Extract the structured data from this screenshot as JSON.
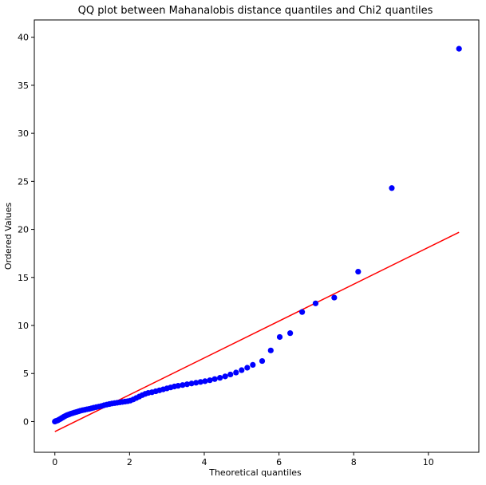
{
  "chart_data": {
    "type": "scatter",
    "title": "QQ plot between Mahanalobis distance quantiles and Chi2 quantiles",
    "xlabel": "Theoretical quantiles",
    "ylabel": "Ordered Values",
    "xlim": [
      -0.55,
      11.35
    ],
    "ylim": [
      -3.2,
      41.8
    ],
    "xticks": [
      0,
      2,
      4,
      6,
      8,
      10
    ],
    "yticks": [
      0,
      5,
      10,
      15,
      20,
      25,
      30,
      35,
      40
    ],
    "grid": false,
    "legend": "none",
    "colors": {
      "points": "#0000ff",
      "fit_line": "#ff0000",
      "axes": "#000000",
      "background": "#ffffff"
    },
    "series": [
      {
        "type": "scatter",
        "x": [
          0.0,
          0.02,
          0.05,
          0.08,
          0.1,
          0.13,
          0.16,
          0.18,
          0.21,
          0.24,
          0.27,
          0.31,
          0.35,
          0.39,
          0.43,
          0.48,
          0.53,
          0.58,
          0.63,
          0.68,
          0.74,
          0.8,
          0.86,
          0.92,
          0.98,
          1.04,
          1.11,
          1.18,
          1.25,
          1.32,
          1.39,
          1.46,
          1.53,
          1.6,
          1.67,
          1.74,
          1.81,
          1.88,
          1.95,
          2.02,
          2.1,
          2.18,
          2.26,
          2.34,
          2.42,
          2.5,
          2.6,
          2.7,
          2.8,
          2.9,
          3.0,
          3.1,
          3.2,
          3.3,
          3.42,
          3.54,
          3.66,
          3.78,
          3.9,
          4.02,
          4.15,
          4.28,
          4.42,
          4.56,
          4.7,
          4.85,
          5.0,
          5.15,
          5.3,
          5.55,
          5.78,
          6.02,
          6.3,
          6.62,
          6.98,
          7.48,
          8.12,
          9.02,
          10.82
        ],
        "y": [
          0.0,
          0.05,
          0.08,
          0.12,
          0.18,
          0.24,
          0.3,
          0.36,
          0.42,
          0.5,
          0.56,
          0.64,
          0.7,
          0.76,
          0.82,
          0.88,
          0.94,
          1.0,
          1.06,
          1.12,
          1.18,
          1.22,
          1.28,
          1.32,
          1.38,
          1.44,
          1.5,
          1.56,
          1.62,
          1.7,
          1.76,
          1.82,
          1.88,
          1.92,
          1.96,
          2.0,
          2.04,
          2.08,
          2.12,
          2.18,
          2.3,
          2.45,
          2.6,
          2.75,
          2.88,
          2.98,
          3.05,
          3.15,
          3.25,
          3.35,
          3.45,
          3.55,
          3.65,
          3.72,
          3.8,
          3.88,
          3.96,
          4.04,
          4.12,
          4.2,
          4.3,
          4.42,
          4.55,
          4.7,
          4.9,
          5.1,
          5.35,
          5.6,
          5.9,
          6.3,
          7.4,
          8.8,
          9.2,
          11.4,
          12.3,
          12.9,
          15.6,
          24.3,
          38.8
        ]
      },
      {
        "type": "line",
        "x": [
          0.0,
          10.82
        ],
        "y": [
          -1.05,
          19.7
        ]
      }
    ]
  }
}
